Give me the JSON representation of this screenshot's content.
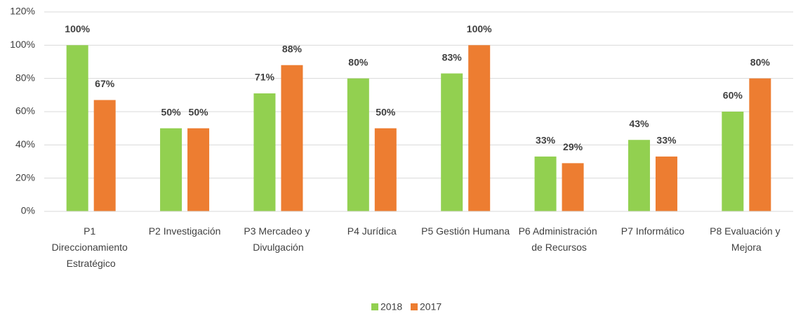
{
  "chart_data": {
    "type": "bar",
    "categories": [
      "P1 Direccionamiento Estratégico",
      "P2 Investigación",
      "P3 Mercadeo y Divulgación",
      "P4 Jurídica",
      "P5 Gestión Humana",
      "P6 Administración de Recursos",
      "P7 Informático",
      "P8 Evaluación y Mejora"
    ],
    "series": [
      {
        "name": "2018",
        "color": "#92d050",
        "values": [
          100,
          50,
          71,
          80,
          83,
          33,
          43,
          60
        ],
        "value_labels": [
          "100%",
          "50%",
          "71%",
          "80%",
          "83%",
          "33%",
          "43%",
          "60%"
        ]
      },
      {
        "name": "2017",
        "color": "#ed7d31",
        "values": [
          67,
          50,
          88,
          50,
          100,
          29,
          33,
          80
        ],
        "value_labels": [
          "67%",
          "50%",
          "88%",
          "50%",
          "100%",
          "29%",
          "33%",
          "80%"
        ]
      }
    ],
    "ylim": [
      0,
      120
    ],
    "yticks": [
      {
        "value": 0,
        "label": "0%"
      },
      {
        "value": 20,
        "label": "20%"
      },
      {
        "value": 40,
        "label": "40%"
      },
      {
        "value": 60,
        "label": "60%"
      },
      {
        "value": 80,
        "label": "80%"
      },
      {
        "value": 100,
        "label": "100%"
      },
      {
        "value": 120,
        "label": "120%"
      }
    ],
    "grid": true,
    "legend": "bottom"
  }
}
